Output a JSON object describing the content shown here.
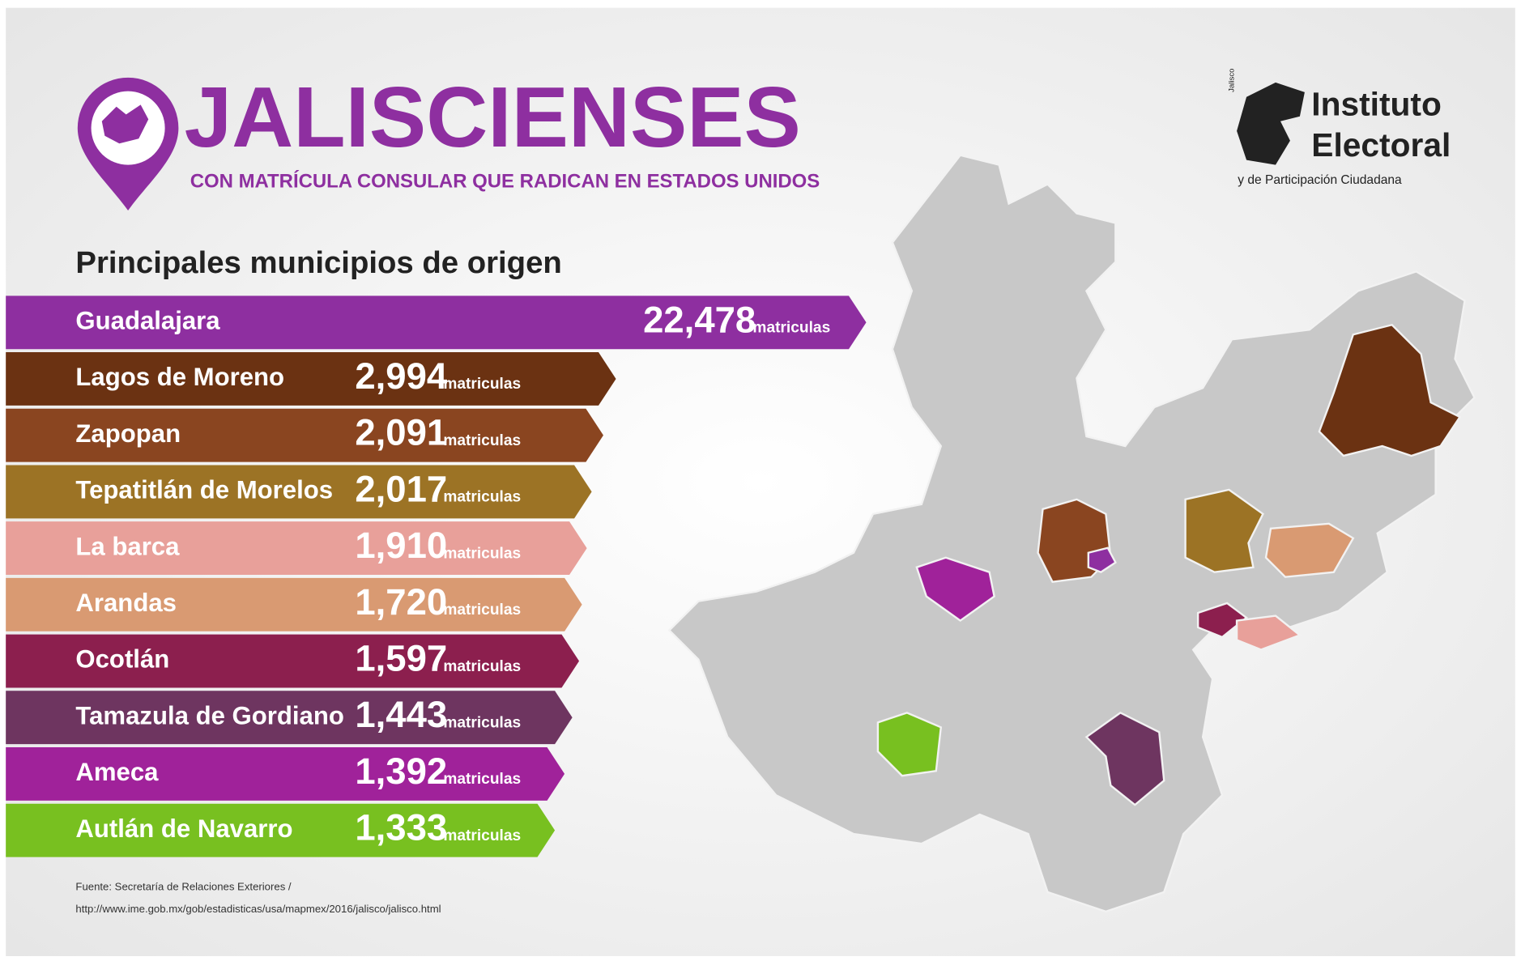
{
  "header": {
    "title": "JALISCIENSES",
    "subtitle": "CON MATRÍCULA CONSULAR QUE RADICAN EN ESTADOS UNIDOS"
  },
  "logo": {
    "small": "Jalisco",
    "line1": "Instituto",
    "line2": "Electoral",
    "line3": "y de Participación Ciudadana"
  },
  "section_title": "Principales municipios de origen",
  "rows": [
    {
      "name": "Guadalajara",
      "value": "22,478",
      "unit": "matriculas",
      "color": "#8e2fa0"
    },
    {
      "name": "Lagos de Moreno",
      "value": "2,994",
      "unit": "matriculas",
      "color": "#6b3212"
    },
    {
      "name": "Zapopan",
      "value": "2,091",
      "unit": "matriculas",
      "color": "#8a4520"
    },
    {
      "name": "Tepatitlán de Morelos",
      "value": "2,017",
      "unit": "matriculas",
      "color": "#9c7325"
    },
    {
      "name": "La barca",
      "value": "1,910",
      "unit": "matriculas",
      "color": "#e8a09a"
    },
    {
      "name": "Arandas",
      "value": "1,720",
      "unit": "matriculas",
      "color": "#d99a72"
    },
    {
      "name": "Ocotlán",
      "value": "1,597",
      "unit": "matriculas",
      "color": "#8c1f4e"
    },
    {
      "name": "Tamazula de Gordiano",
      "value": "1,443",
      "unit": "matriculas",
      "color": "#6e3560"
    },
    {
      "name": "Ameca",
      "value": "1,392",
      "unit": "matriculas",
      "color": "#a0229a"
    },
    {
      "name": "Autlán de Navarro",
      "value": "1,333",
      "unit": "matriculas",
      "color": "#78c020"
    }
  ],
  "source": {
    "line1": "Fuente: Secretaría de Relaciones Exteriores /",
    "line2": "http://www.ime.gob.mx/gob/estadisticas/usa/mapmex/2016/jalisco/jalisco.html"
  }
}
